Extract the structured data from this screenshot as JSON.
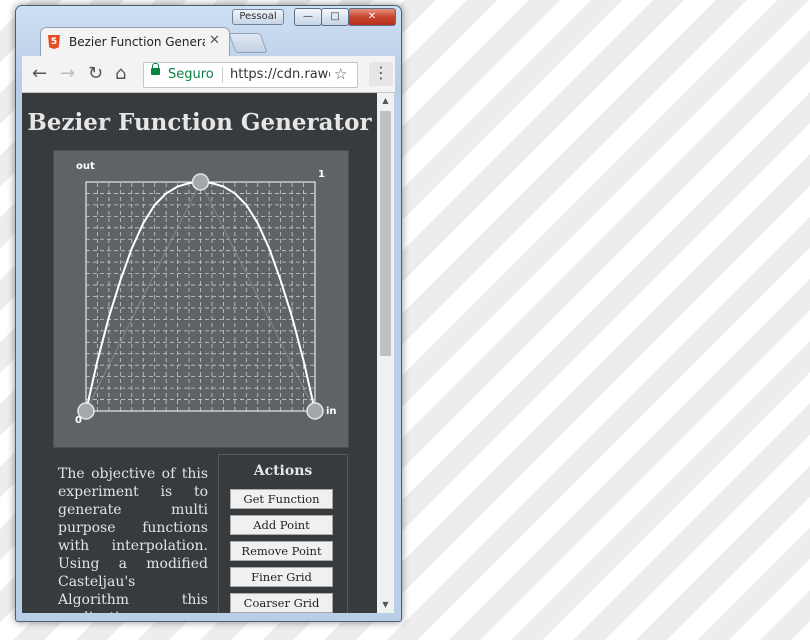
{
  "window": {
    "profile": "Pessoal",
    "minimize": "—",
    "maximize": "□",
    "close": "✕"
  },
  "tab": {
    "title": "Bezier Function Generator",
    "icon": "5",
    "close": "✕"
  },
  "toolbar": {
    "back": "←",
    "forward": "→",
    "reload": "↻",
    "home": "⌂",
    "secure_label": "Seguro",
    "url": "https://cdn.rawgit.com",
    "star": "☆",
    "menu": "⋮"
  },
  "page": {
    "title": "Bezier Function Generator",
    "description": "The objective of this experiment is to generate multi purpose functions with interpolation. Using a modified Casteljau's Algorithm this application can generate smooth",
    "actions": {
      "title": "Actions",
      "buttons": [
        "Get Function",
        "Add Point",
        "Remove Point",
        "Finer Grid",
        "Coarser Grid"
      ]
    }
  },
  "chart_data": {
    "type": "line",
    "xlabel": "in",
    "ylabel": "out",
    "origin_label": "0",
    "max_label": "1",
    "xlim": [
      0,
      1
    ],
    "ylim": [
      0,
      1
    ],
    "grid": true,
    "grid_divisions": 10,
    "control_points": [
      {
        "x": 0.0,
        "y": 0.0
      },
      {
        "x": 0.5,
        "y": 1.0
      },
      {
        "x": 1.0,
        "y": 0.0
      }
    ],
    "curve": [
      {
        "x": 0.0,
        "y": 0.0
      },
      {
        "x": 0.05,
        "y": 0.22
      },
      {
        "x": 0.1,
        "y": 0.41
      },
      {
        "x": 0.15,
        "y": 0.57
      },
      {
        "x": 0.2,
        "y": 0.71
      },
      {
        "x": 0.25,
        "y": 0.82
      },
      {
        "x": 0.3,
        "y": 0.9
      },
      {
        "x": 0.35,
        "y": 0.95
      },
      {
        "x": 0.4,
        "y": 0.98
      },
      {
        "x": 0.45,
        "y": 0.995
      },
      {
        "x": 0.5,
        "y": 1.0
      },
      {
        "x": 0.55,
        "y": 0.995
      },
      {
        "x": 0.6,
        "y": 0.98
      },
      {
        "x": 0.65,
        "y": 0.95
      },
      {
        "x": 0.7,
        "y": 0.9
      },
      {
        "x": 0.75,
        "y": 0.82
      },
      {
        "x": 0.8,
        "y": 0.71
      },
      {
        "x": 0.85,
        "y": 0.57
      },
      {
        "x": 0.9,
        "y": 0.41
      },
      {
        "x": 0.95,
        "y": 0.22
      },
      {
        "x": 1.0,
        "y": 0.0
      }
    ]
  }
}
